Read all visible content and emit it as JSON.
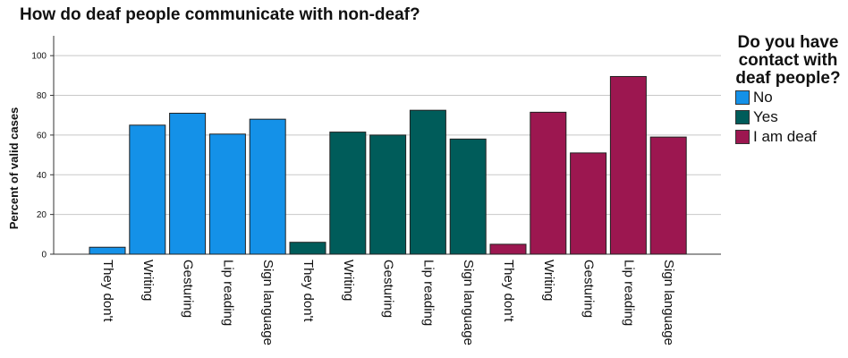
{
  "chart_data": {
    "type": "bar",
    "title": "How do deaf people communicate with non-deaf?",
    "xlabel": "",
    "ylabel": "Percent of valid cases",
    "ylim": [
      0,
      110
    ],
    "yticks": [
      0,
      20,
      40,
      60,
      80,
      100
    ],
    "grid": true,
    "legend": {
      "title": "Do you have contact with deaf people?",
      "placement": "right",
      "entries": [
        "No",
        "Yes",
        "I am deaf"
      ]
    },
    "categories": [
      "They don't",
      "Writing",
      "Gesturing",
      "Lip reading",
      "Sign language"
    ],
    "series": [
      {
        "name": "No",
        "color": "#1491e8",
        "values": [
          3.5,
          65,
          71,
          60.5,
          68
        ]
      },
      {
        "name": "Yes",
        "color": "#005c5a",
        "values": [
          6,
          61.5,
          60,
          72.5,
          58
        ]
      },
      {
        "name": "I am deaf",
        "color": "#9c1750",
        "values": [
          5,
          71.5,
          51,
          89.5,
          59
        ]
      }
    ]
  }
}
